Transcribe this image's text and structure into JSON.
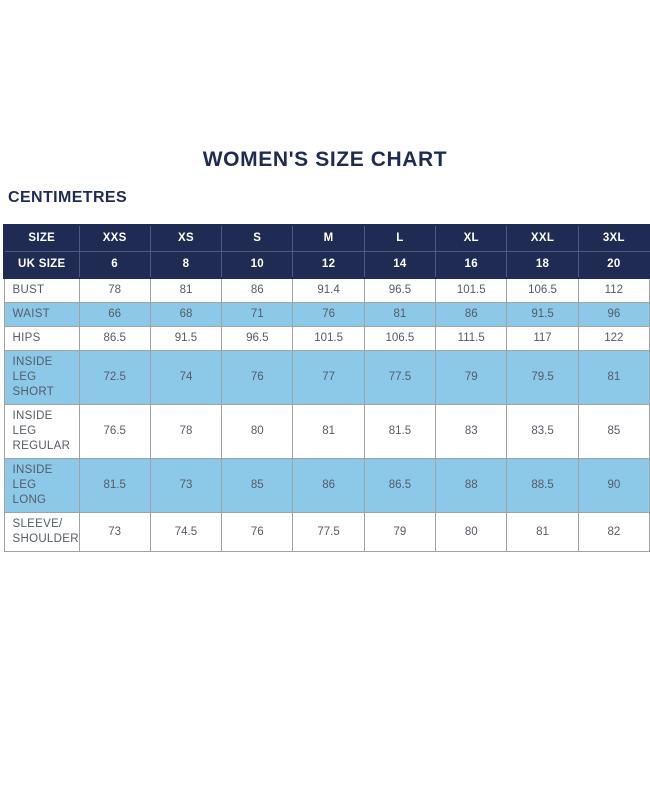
{
  "page": {
    "title": "WOMEN'S SIZE CHART",
    "unit_label": "CENTIMETRES"
  },
  "colors": {
    "navy": "#1f2b52",
    "navy_divider": "#4d5980",
    "highlight_blue": "#8cc9e9",
    "body_text": "#555b66",
    "border_gray": "#a2a2a2",
    "background": "#ffffff",
    "header_text": "#ffffff"
  },
  "chart_data": {
    "type": "table",
    "title": "WOMEN'S SIZE CHART",
    "unit": "CENTIMETRES",
    "header_rows": [
      {
        "label": "SIZE",
        "values": [
          "XXS",
          "XS",
          "S",
          "M",
          "L",
          "XL",
          "XXL",
          "3XL"
        ]
      },
      {
        "label": "UK SIZE",
        "values": [
          "6",
          "8",
          "10",
          "12",
          "14",
          "16",
          "18",
          "20"
        ]
      }
    ],
    "rows": [
      {
        "label": "BUST",
        "values": [
          "78",
          "81",
          "86",
          "91.4",
          "96.5",
          "101.5",
          "106.5",
          "112"
        ],
        "highlight": false
      },
      {
        "label": "WAIST",
        "values": [
          "66",
          "68",
          "71",
          "76",
          "81",
          "86",
          "91.5",
          "96"
        ],
        "highlight": true
      },
      {
        "label": "HIPS",
        "values": [
          "86.5",
          "91.5",
          "96.5",
          "101.5",
          "106.5",
          "111.5",
          "117",
          "122"
        ],
        "highlight": false
      },
      {
        "label": "INSIDE LEG\nSHORT",
        "values": [
          "72.5",
          "74",
          "76",
          "77",
          "77.5",
          "79",
          "79.5",
          "81"
        ],
        "highlight": true
      },
      {
        "label": "INSIDE LEG\nREGULAR",
        "values": [
          "76.5",
          "78",
          "80",
          "81",
          "81.5",
          "83",
          "83.5",
          "85"
        ],
        "highlight": false
      },
      {
        "label": "INSIDE LEG\nLONG",
        "values": [
          "81.5",
          "73",
          "85",
          "86",
          "86.5",
          "88",
          "88.5",
          "90"
        ],
        "highlight": true
      },
      {
        "label": "SLEEVE/\nSHOULDER",
        "values": [
          "73",
          "74.5",
          "76",
          "77.5",
          "79",
          "80",
          "81",
          "82"
        ],
        "highlight": false
      }
    ]
  }
}
